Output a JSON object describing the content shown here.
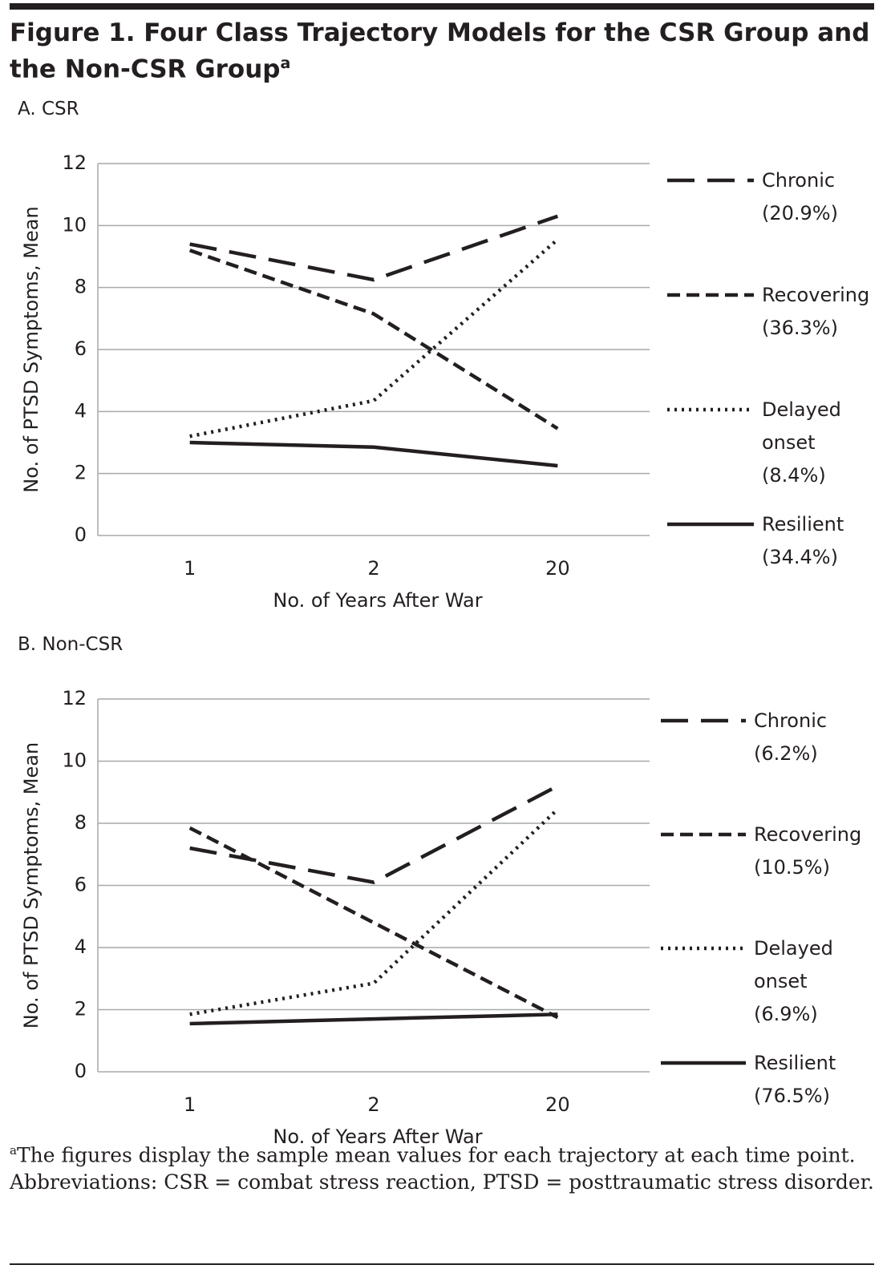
{
  "title": "Figure 1. Four Class Trajectory Models for the CSR Group and the Non-CSR Group",
  "title_note": "a",
  "footnote_marker": "a",
  "footnote": "The figures display the sample mean values for each trajectory at each time point.",
  "abbreviations": "Abbreviations: CSR = combat stress reaction, PTSD = posttraumatic stress disorder.",
  "chart_data": [
    {
      "type": "line",
      "title": "A. CSR",
      "x_label": "No. of Years After War",
      "y_label": "No. of PTSD Symptoms, Mean",
      "categories": [
        "1",
        "2",
        "20"
      ],
      "ylim": [
        0,
        12
      ],
      "yticks": [
        0,
        2,
        4,
        6,
        8,
        10,
        12
      ],
      "grid": true,
      "series": [
        {
          "name": "Chronic (20.9%)",
          "color": "#231f20",
          "dash": "long",
          "values": [
            9.4,
            8.25,
            10.3
          ]
        },
        {
          "name": "Recovering (36.3%)",
          "color": "#231f20",
          "dash": "short",
          "values": [
            9.2,
            7.15,
            3.45
          ]
        },
        {
          "name": "Delayed onset (8.4%)",
          "color": "#231f20",
          "dash": "dot",
          "values": [
            3.2,
            4.35,
            9.55
          ]
        },
        {
          "name": "Resilient (34.4%)",
          "color": "#231f20",
          "dash": "solid",
          "values": [
            3.0,
            2.85,
            2.25
          ]
        }
      ]
    },
    {
      "type": "line",
      "title": "B. Non-CSR",
      "x_label": "No. of Years After War",
      "y_label": "No. of PTSD Symptoms, Mean",
      "categories": [
        "1",
        "2",
        "20"
      ],
      "ylim": [
        0,
        12
      ],
      "yticks": [
        0,
        2,
        4,
        6,
        8,
        10,
        12
      ],
      "grid": true,
      "series": [
        {
          "name": "Chronic (6.2%)",
          "color": "#231f20",
          "dash": "long",
          "values": [
            7.2,
            6.1,
            9.2
          ]
        },
        {
          "name": "Recovering (10.5%)",
          "color": "#231f20",
          "dash": "short",
          "values": [
            7.85,
            4.8,
            1.75
          ]
        },
        {
          "name": "Delayed onset (6.9%)",
          "color": "#231f20",
          "dash": "dot",
          "values": [
            1.85,
            2.85,
            8.45
          ]
        },
        {
          "name": "Resilient (76.5%)",
          "color": "#231f20",
          "dash": "solid",
          "values": [
            1.55,
            1.7,
            1.85
          ]
        }
      ]
    }
  ]
}
